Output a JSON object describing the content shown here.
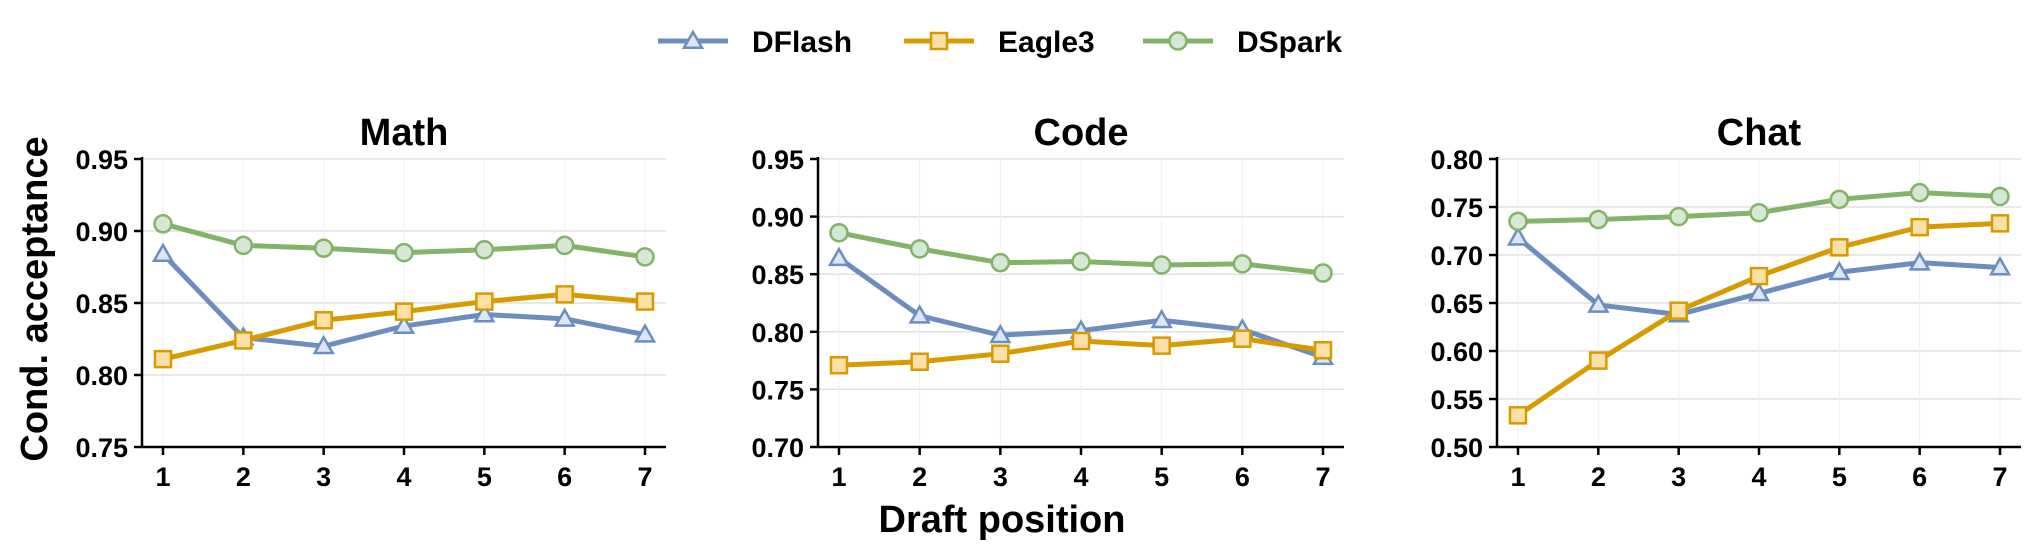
{
  "legend": [
    {
      "name": "DFlash",
      "color": "#6c8ebf",
      "fill": "#dbe6f6",
      "marker": "triangle"
    },
    {
      "name": "Eagle3",
      "color": "#d79b00",
      "fill": "#fce0a8",
      "marker": "square"
    },
    {
      "name": "DSpark",
      "color": "#82b366",
      "fill": "#d5e8d4",
      "marker": "circle"
    }
  ],
  "shared_xlabel": "Draft position",
  "shared_ylabel": "Cond. acceptance",
  "chart_data": [
    {
      "type": "line",
      "title": "Math",
      "xlabel": "",
      "ylabel": "Cond. acceptance",
      "x": [
        1,
        2,
        3,
        4,
        5,
        6,
        7
      ],
      "ylim": [
        0.75,
        0.95
      ],
      "yticks": [
        "0.75",
        "0.80",
        "0.85",
        "0.90",
        "0.95"
      ],
      "grid": true,
      "series": [
        {
          "name": "DFlash",
          "values": [
            0.884,
            0.826,
            0.82,
            0.834,
            0.842,
            0.839,
            0.828
          ]
        },
        {
          "name": "Eagle3",
          "values": [
            0.811,
            0.824,
            0.838,
            0.844,
            0.851,
            0.856,
            0.851
          ]
        },
        {
          "name": "DSpark",
          "values": [
            0.905,
            0.89,
            0.888,
            0.885,
            0.887,
            0.89,
            0.882
          ]
        }
      ]
    },
    {
      "type": "line",
      "title": "Code",
      "xlabel": "Draft position",
      "ylabel": "",
      "x": [
        1,
        2,
        3,
        4,
        5,
        6,
        7
      ],
      "ylim": [
        0.7,
        0.95
      ],
      "yticks": [
        "0.70",
        "0.75",
        "0.80",
        "0.85",
        "0.90",
        "0.95"
      ],
      "grid": true,
      "series": [
        {
          "name": "DFlash",
          "values": [
            0.864,
            0.814,
            0.797,
            0.801,
            0.81,
            0.802,
            0.778
          ]
        },
        {
          "name": "Eagle3",
          "values": [
            0.771,
            0.774,
            0.781,
            0.792,
            0.788,
            0.794,
            0.784
          ]
        },
        {
          "name": "DSpark",
          "values": [
            0.886,
            0.872,
            0.86,
            0.861,
            0.858,
            0.859,
            0.851
          ]
        }
      ]
    },
    {
      "type": "line",
      "title": "Chat",
      "xlabel": "",
      "ylabel": "",
      "x": [
        1,
        2,
        3,
        4,
        5,
        6,
        7
      ],
      "ylim": [
        0.5,
        0.8
      ],
      "yticks": [
        "0.50",
        "0.55",
        "0.60",
        "0.65",
        "0.70",
        "0.75",
        "0.80"
      ],
      "grid": true,
      "series": [
        {
          "name": "DFlash",
          "values": [
            0.718,
            0.648,
            0.638,
            0.66,
            0.682,
            0.692,
            0.687
          ]
        },
        {
          "name": "Eagle3",
          "values": [
            0.533,
            0.59,
            0.642,
            0.678,
            0.708,
            0.729,
            0.733
          ]
        },
        {
          "name": "DSpark",
          "values": [
            0.735,
            0.737,
            0.74,
            0.744,
            0.758,
            0.765,
            0.761
          ]
        }
      ]
    }
  ]
}
